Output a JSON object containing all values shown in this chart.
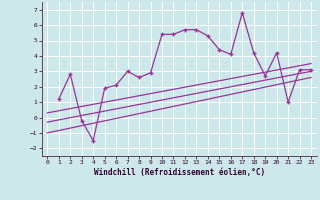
{
  "xlabel": "Windchill (Refroidissement éolien,°C)",
  "bg_color": "#cce8ea",
  "grid_color": "#ffffff",
  "line_color": "#993399",
  "xlim": [
    -0.5,
    23.5
  ],
  "ylim": [
    -2.5,
    7.5
  ],
  "xticks": [
    0,
    1,
    2,
    3,
    4,
    5,
    6,
    7,
    8,
    9,
    10,
    11,
    12,
    13,
    14,
    15,
    16,
    17,
    18,
    19,
    20,
    21,
    22,
    23
  ],
  "yticks": [
    -2,
    -1,
    0,
    1,
    2,
    3,
    4,
    5,
    6,
    7
  ],
  "main_x": [
    1,
    2,
    3,
    4,
    5,
    6,
    7,
    8,
    9,
    10,
    11,
    12,
    13,
    14,
    15,
    16,
    17,
    18,
    19,
    20,
    21,
    22,
    23
  ],
  "main_y": [
    1.2,
    2.8,
    -0.2,
    -1.5,
    1.9,
    2.1,
    3.0,
    2.6,
    2.9,
    5.4,
    5.4,
    5.7,
    5.7,
    5.3,
    4.4,
    4.1,
    6.8,
    4.2,
    2.7,
    4.2,
    1.0,
    3.1,
    3.1
  ],
  "line1_x": [
    0,
    23
  ],
  "line1_y": [
    0.3,
    3.5
  ],
  "line2_x": [
    0,
    23
  ],
  "line2_y": [
    -0.3,
    3.0
  ],
  "line3_x": [
    0,
    23
  ],
  "line3_y": [
    -1.0,
    2.6
  ]
}
